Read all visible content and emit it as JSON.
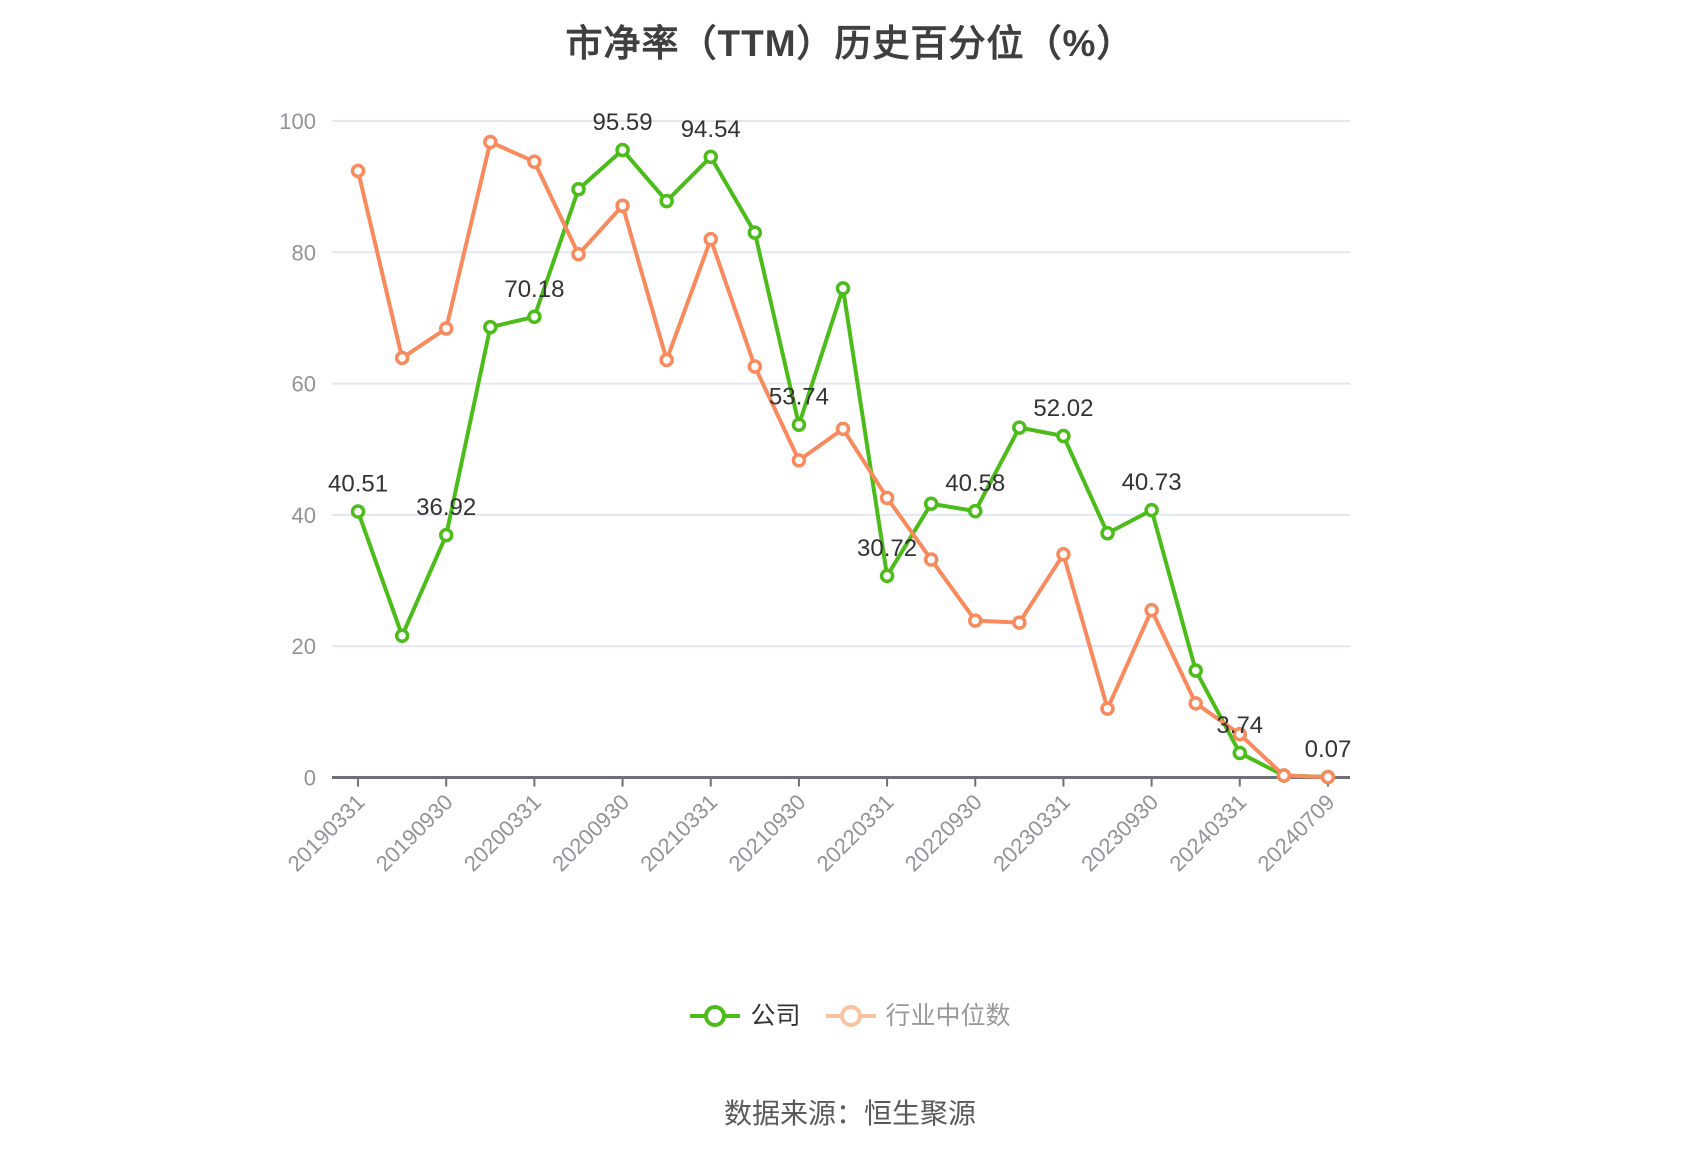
{
  "title": "市净率（TTM）历史百分位（%）",
  "source": "数据来源：恒生聚源",
  "colors": {
    "company_line": "#4bbc19",
    "industry_line": "#f88a5e",
    "legend_industry_icon": "#f9c3a2",
    "legend_company_text": "#333333",
    "legend_industry_text": "#999999",
    "grid_line": "#e3e7f2",
    "axis_line": "#6e7079",
    "axis_label": "#909399",
    "data_label": "#333333",
    "marker_fill": "#ffffff"
  },
  "legend": [
    {
      "label": "公司",
      "icon_color": "#4bbc19",
      "text_color": "#333333"
    },
    {
      "label": "行业中位数",
      "icon_color": "#f9c3a2",
      "text_color": "#999999"
    }
  ],
  "chart_data": {
    "type": "line",
    "n_points": 23,
    "x_tick_labels": [
      "20190331",
      "20190930",
      "20200331",
      "20200930",
      "20210331",
      "20210930",
      "20220331",
      "20220930",
      "20230331",
      "20230930",
      "20240331",
      "20240709"
    ],
    "tick_every_nth_point": 2,
    "ylim": [
      0,
      100
    ],
    "yticks": [
      0,
      20,
      40,
      60,
      80,
      100
    ],
    "grid": true,
    "legend_position": "bottom",
    "series": [
      {
        "name": "公司",
        "color": "#4bbc19",
        "values": [
          40.51,
          21.6,
          36.92,
          68.6,
          70.18,
          89.6,
          95.59,
          87.8,
          94.54,
          83.0,
          53.74,
          74.5,
          30.72,
          41.7,
          40.58,
          53.3,
          52.02,
          37.2,
          40.73,
          16.3,
          3.74,
          0.3,
          0.07
        ],
        "point_labels": {
          "0": "40.51",
          "2": "36.92",
          "4": "70.18",
          "6": "95.59",
          "8": "94.54",
          "10": "53.74",
          "12": "30.72",
          "14": "40.58",
          "16": "52.02",
          "18": "40.73",
          "20": "3.74",
          "22": "0.07"
        }
      },
      {
        "name": "行业中位数",
        "color": "#f88a5e",
        "values": [
          92.4,
          63.9,
          68.4,
          96.8,
          93.8,
          79.7,
          87.1,
          63.6,
          82.0,
          62.6,
          48.3,
          53.1,
          42.6,
          33.2,
          23.9,
          23.6,
          34.0,
          10.5,
          25.5,
          11.3,
          6.6,
          0.3,
          0.05
        ],
        "point_labels": {}
      }
    ]
  }
}
